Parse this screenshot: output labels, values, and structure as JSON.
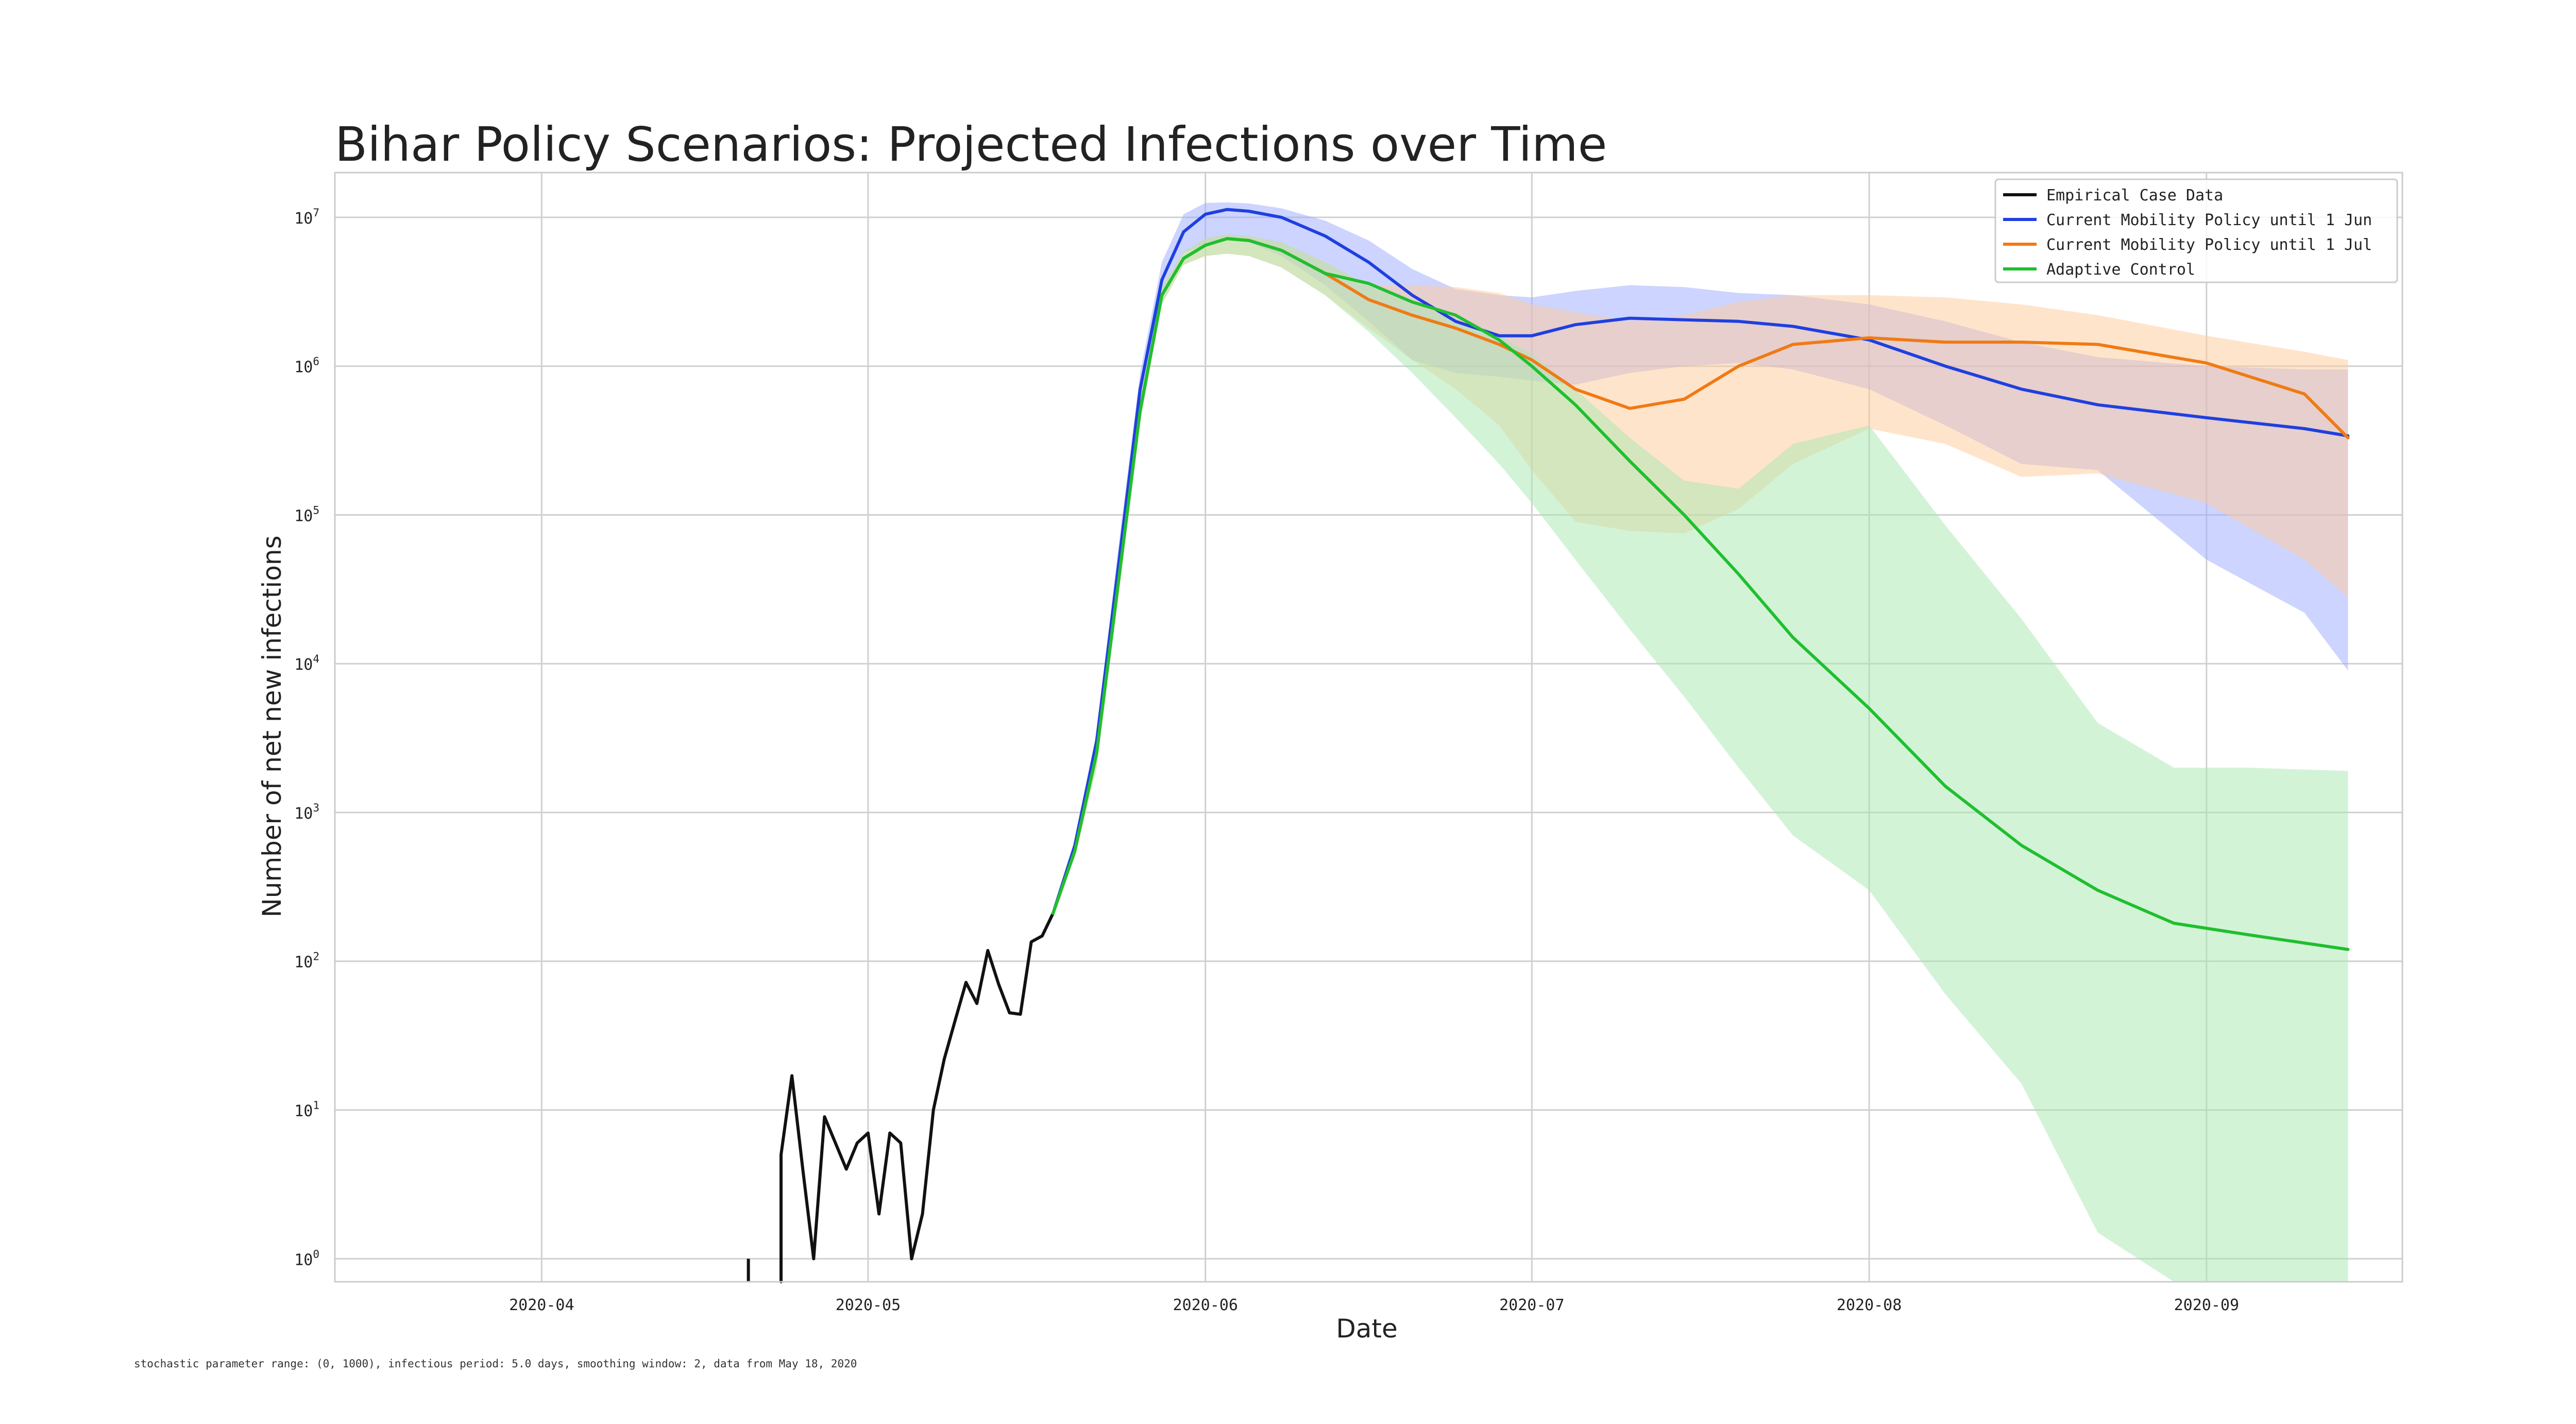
{
  "chart_data": {
    "type": "line",
    "title": "Bihar Policy Scenarios: Projected Infections over Time",
    "xlabel": "Date",
    "ylabel": "Number of net new infections",
    "footnote": "stochastic parameter range: (0, 1000), infectious period: 5.0 days, smoothing window: 2, data from May 18, 2020",
    "yscale": "log",
    "ylim": [
      0.7,
      20000000
    ],
    "xlim": [
      "2020-03-13",
      "2020-09-19"
    ],
    "grid": true,
    "legend_position": "top-right",
    "x_ticks": [
      "2020-04-01",
      "2020-05-01",
      "2020-06-01",
      "2020-07-01",
      "2020-08-01",
      "2020-09-01"
    ],
    "x_tick_labels": [
      "2020-04",
      "2020-05",
      "2020-06",
      "2020-07",
      "2020-08",
      "2020-09"
    ],
    "y_ticks": [
      {
        "value": 1,
        "base": "10",
        "exp": "0"
      },
      {
        "value": 10,
        "base": "10",
        "exp": "1"
      },
      {
        "value": 100,
        "base": "10",
        "exp": "2"
      },
      {
        "value": 1000,
        "base": "10",
        "exp": "3"
      },
      {
        "value": 10000,
        "base": "10",
        "exp": "4"
      },
      {
        "value": 100000,
        "base": "10",
        "exp": "5"
      },
      {
        "value": 1000000,
        "base": "10",
        "exp": "6"
      },
      {
        "value": 10000000,
        "base": "10",
        "exp": "7"
      }
    ],
    "series": [
      {
        "name": "Empirical Case Data",
        "color": "#111111",
        "x": [
          "2020-04-20",
          "2020-04-23",
          "2020-04-24",
          "2020-04-25",
          "2020-04-26",
          "2020-04-27",
          "2020-04-28",
          "2020-04-29",
          "2020-04-30",
          "2020-05-01",
          "2020-05-02",
          "2020-05-03",
          "2020-05-04",
          "2020-05-05",
          "2020-05-06",
          "2020-05-07",
          "2020-05-08",
          "2020-05-09",
          "2020-05-10",
          "2020-05-11",
          "2020-05-12",
          "2020-05-13",
          "2020-05-14",
          "2020-05-15",
          "2020-05-16",
          "2020-05-17",
          "2020-05-18"
        ],
        "values": [
          1,
          5,
          17,
          4,
          1,
          9,
          6,
          4,
          6,
          7,
          2,
          7,
          6,
          1,
          2,
          10,
          22,
          40,
          72,
          52,
          118,
          70,
          45,
          44,
          135,
          148,
          210
        ]
      },
      {
        "name": "Current Mobility Policy until 1 Jun",
        "color": "#1f3fe0",
        "band_color": "#9aaaff",
        "x": [
          "2020-05-18",
          "2020-05-20",
          "2020-05-22",
          "2020-05-24",
          "2020-05-26",
          "2020-05-28",
          "2020-05-30",
          "2020-06-01",
          "2020-06-03",
          "2020-06-05",
          "2020-06-08",
          "2020-06-12",
          "2020-06-16",
          "2020-06-20",
          "2020-06-24",
          "2020-06-28",
          "2020-07-01",
          "2020-07-05",
          "2020-07-10",
          "2020-07-15",
          "2020-07-20",
          "2020-07-25",
          "2020-08-01",
          "2020-08-08",
          "2020-08-15",
          "2020-08-22",
          "2020-09-01",
          "2020-09-10",
          "2020-09-14"
        ],
        "values": [
          210,
          600,
          3000,
          45000,
          700000,
          3800000,
          8000000,
          10500000,
          11300000,
          11000000,
          10000000,
          7500000,
          5000000,
          3000000,
          2000000,
          1600000,
          1600000,
          1900000,
          2100000,
          2050000,
          2000000,
          1850000,
          1500000,
          1000000,
          700000,
          550000,
          450000,
          380000,
          340000
        ],
        "band_lower": [
          210,
          550,
          2200,
          35000,
          550000,
          3000000,
          5800000,
          6500000,
          7000000,
          6800000,
          5500000,
          3500000,
          2000000,
          1100000,
          900000,
          850000,
          800000,
          750000,
          900000,
          1000000,
          1050000,
          950000,
          700000,
          400000,
          220000,
          200000,
          50000,
          22000,
          9000
        ],
        "band_upper": [
          210,
          650,
          3500,
          60000,
          900000,
          5000000,
          10500000,
          12500000,
          12600000,
          12400000,
          11500000,
          9500000,
          7000000,
          4500000,
          3300000,
          3000000,
          2900000,
          3200000,
          3500000,
          3400000,
          3100000,
          3000000,
          2600000,
          2000000,
          1450000,
          1150000,
          1000000,
          950000,
          950000
        ]
      },
      {
        "name": "Current Mobility Policy until 1 Jul",
        "color": "#f07a14",
        "band_color": "#ffc99a",
        "x": [
          "2020-05-18",
          "2020-05-20",
          "2020-05-22",
          "2020-05-24",
          "2020-05-26",
          "2020-05-28",
          "2020-05-30",
          "2020-06-01",
          "2020-06-03",
          "2020-06-05",
          "2020-06-08",
          "2020-06-12",
          "2020-06-16",
          "2020-06-20",
          "2020-06-24",
          "2020-06-28",
          "2020-07-01",
          "2020-07-05",
          "2020-07-10",
          "2020-07-15",
          "2020-07-20",
          "2020-07-25",
          "2020-08-01",
          "2020-08-08",
          "2020-08-15",
          "2020-08-22",
          "2020-09-01",
          "2020-09-10",
          "2020-09-14"
        ],
        "values": [
          210,
          550,
          2500,
          35000,
          500000,
          3000000,
          5300000,
          6500000,
          7200000,
          7000000,
          6000000,
          4200000,
          2800000,
          2200000,
          1800000,
          1400000,
          1100000,
          700000,
          520000,
          600000,
          1000000,
          1400000,
          1550000,
          1450000,
          1450000,
          1400000,
          1050000,
          650000,
          330000
        ],
        "band_lower": [
          210,
          500,
          2000,
          28000,
          420000,
          2600000,
          4800000,
          5500000,
          5700000,
          5500000,
          4600000,
          3000000,
          1800000,
          1100000,
          700000,
          400000,
          200000,
          90000,
          78000,
          75000,
          110000,
          220000,
          380000,
          300000,
          180000,
          190000,
          120000,
          50000,
          28000
        ],
        "band_upper": [
          210,
          600,
          3000,
          40000,
          600000,
          3400000,
          5900000,
          7200000,
          7700000,
          7500000,
          6800000,
          5000000,
          3500000,
          3500000,
          3400000,
          3100000,
          2600000,
          2300000,
          2000000,
          2200000,
          2700000,
          3000000,
          3000000,
          2900000,
          2600000,
          2200000,
          1600000,
          1250000,
          1100000
        ]
      },
      {
        "name": "Adaptive Control",
        "color": "#1fbf2f",
        "band_color": "#a8e8b0",
        "x": [
          "2020-05-18",
          "2020-05-20",
          "2020-05-22",
          "2020-05-24",
          "2020-05-26",
          "2020-05-28",
          "2020-05-30",
          "2020-06-01",
          "2020-06-03",
          "2020-06-05",
          "2020-06-08",
          "2020-06-12",
          "2020-06-16",
          "2020-06-20",
          "2020-06-24",
          "2020-06-28",
          "2020-07-01",
          "2020-07-05",
          "2020-07-10",
          "2020-07-15",
          "2020-07-20",
          "2020-07-25",
          "2020-08-01",
          "2020-08-08",
          "2020-08-15",
          "2020-08-22",
          "2020-08-29",
          "2020-09-05",
          "2020-09-14"
        ],
        "values": [
          210,
          550,
          2500,
          35000,
          500000,
          3000000,
          5300000,
          6500000,
          7200000,
          7000000,
          6000000,
          4200000,
          3600000,
          2700000,
          2200000,
          1500000,
          1000000,
          550000,
          230000,
          100000,
          40000,
          15000,
          5000,
          1500,
          600,
          300,
          180,
          150,
          120
        ],
        "band_lower": [
          210,
          500,
          2000,
          28000,
          420000,
          2600000,
          4800000,
          5500000,
          5700000,
          5500000,
          4600000,
          3000000,
          1700000,
          900000,
          450000,
          220000,
          120000,
          50000,
          17000,
          6000,
          2000,
          700,
          300,
          60,
          15,
          1.5,
          0.7,
          0.7,
          0.7
        ],
        "band_upper": [
          210,
          600,
          3000,
          40000,
          600000,
          3400000,
          5900000,
          7200000,
          7700000,
          7500000,
          6800000,
          5000000,
          3500000,
          2700000,
          2000000,
          1600000,
          1200000,
          700000,
          330000,
          170000,
          150000,
          300000,
          400000,
          85000,
          20000,
          4000,
          2000,
          2000,
          1900
        ]
      }
    ]
  }
}
